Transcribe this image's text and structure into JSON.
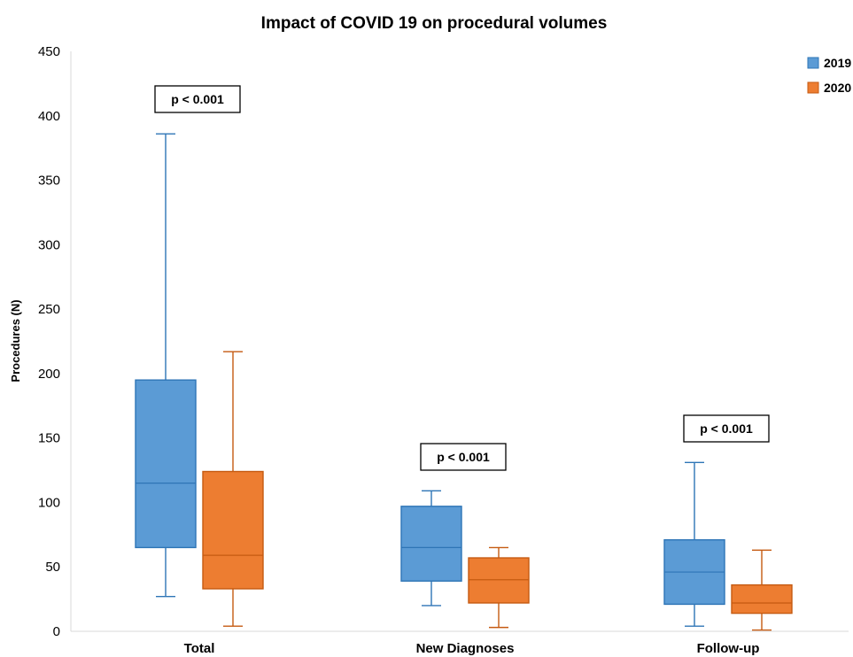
{
  "chart_data": {
    "type": "boxplot",
    "title": "Impact of COVID 19 on procedural volumes",
    "ylabel": "Procedures (N)",
    "xlabel": "",
    "ylim": [
      0,
      450
    ],
    "yticks": [
      0,
      50,
      100,
      150,
      200,
      250,
      300,
      350,
      400,
      450
    ],
    "categories": [
      "Total",
      "New Diagnoses",
      "Follow-up"
    ],
    "legend_position": "top-right",
    "series": [
      {
        "name": "2019",
        "color": "#5B9BD5",
        "stroke": "#2E75B6",
        "boxes": [
          {
            "min": 27,
            "q1": 65,
            "median": 115,
            "q3": 195,
            "max": 386
          },
          {
            "min": 20,
            "q1": 39,
            "median": 65,
            "q3": 97,
            "max": 109
          },
          {
            "min": 4,
            "q1": 21,
            "median": 46,
            "q3": 71,
            "max": 131
          }
        ]
      },
      {
        "name": "2020",
        "color": "#ED7D31",
        "stroke": "#C55A11",
        "boxes": [
          {
            "min": 4,
            "q1": 33,
            "median": 59,
            "q3": 124,
            "max": 217
          },
          {
            "min": 3,
            "q1": 22,
            "median": 40,
            "q3": 57,
            "max": 65
          },
          {
            "min": 1,
            "q1": 14,
            "median": 22,
            "q3": 36,
            "max": 63
          }
        ]
      }
    ],
    "annotations": [
      "p < 0.001",
      "p < 0.001",
      "p < 0.001"
    ]
  }
}
